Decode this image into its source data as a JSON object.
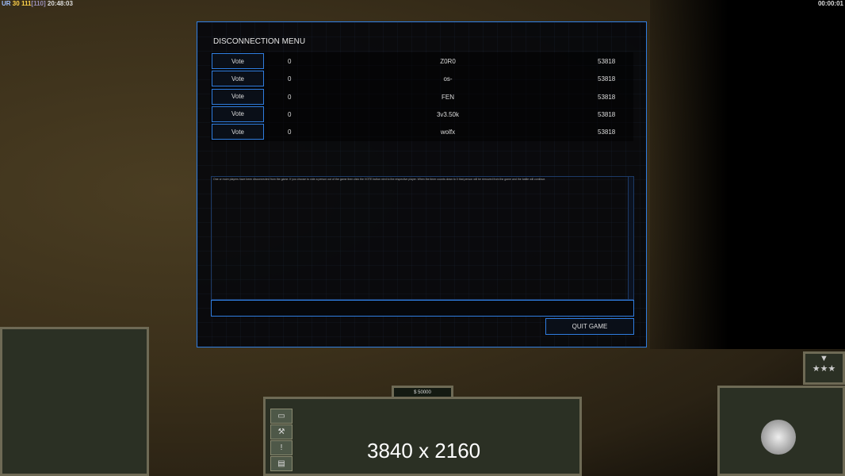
{
  "hud": {
    "ur_label": "UR",
    "ur_value": "30",
    "fps": "111",
    "fps_cap": "[110]",
    "clock": "20:48:03",
    "timer": "00:00:01",
    "money": "$ 50000",
    "resolution": "3840 x 2160"
  },
  "dialog": {
    "title": "DISCONNECTION MENU",
    "players": [
      {
        "vote": "Vote",
        "votes": "0",
        "name": "Z0R0",
        "value": "53818"
      },
      {
        "vote": "Vote",
        "votes": "0",
        "name": "os-",
        "value": "53818"
      },
      {
        "vote": "Vote",
        "votes": "0",
        "name": "FEN",
        "value": "53818"
      },
      {
        "vote": "Vote",
        "votes": "0",
        "name": "3v3.50k",
        "value": "53818"
      },
      {
        "vote": "Vote",
        "votes": "0",
        "name": "wolfx",
        "value": "53818"
      }
    ],
    "message": "One or more players have been disconnected from the game. If you choose to vote a person out of the game then click the VOTE button next to the respective player. When the timer counts down to 0 that person will be removed from the game and the battle will continue.",
    "quit_label": "QUIT GAME"
  },
  "colors": {
    "accent": "#2f7de0"
  }
}
